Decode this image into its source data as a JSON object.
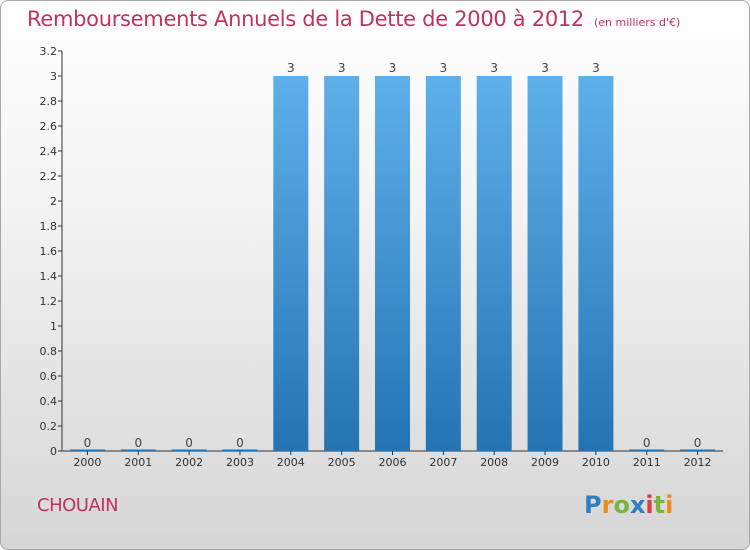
{
  "title": "Remboursements Annuels de la Dette de 2000 à 2012",
  "subtitle": "(en milliers d'€)",
  "commune": "CHOUAIN",
  "logo": {
    "text": "Proxiti",
    "letters": [
      "P",
      "r",
      "o",
      "x",
      "i",
      "t",
      "i"
    ]
  },
  "colors": {
    "title": "#c0335e",
    "bar_top": "#5eb0ea",
    "bar_bottom": "#2474b4"
  },
  "chart_data": {
    "type": "bar",
    "title": "Remboursements Annuels de la Dette de 2000 à 2012",
    "xlabel": "",
    "ylabel": "",
    "categories": [
      "2000",
      "2001",
      "2002",
      "2003",
      "2004",
      "2005",
      "2006",
      "2007",
      "2008",
      "2009",
      "2010",
      "2011",
      "2012"
    ],
    "values": [
      0,
      0,
      0,
      0,
      3,
      3,
      3,
      3,
      3,
      3,
      3,
      0,
      0
    ],
    "data_labels": [
      "0",
      "0",
      "0",
      "0",
      "3",
      "3",
      "3",
      "3",
      "3",
      "3",
      "3",
      "0",
      "0"
    ],
    "y_ticks": [
      "0",
      "0.2",
      "0.4",
      "0.6",
      "0.8",
      "1",
      "1.2",
      "1.4",
      "1.6",
      "1.8",
      "2",
      "2.2",
      "2.4",
      "2.6",
      "2.8",
      "3",
      "3.2"
    ],
    "ylim": [
      0,
      3.2
    ],
    "grid": false,
    "legend": "none"
  }
}
